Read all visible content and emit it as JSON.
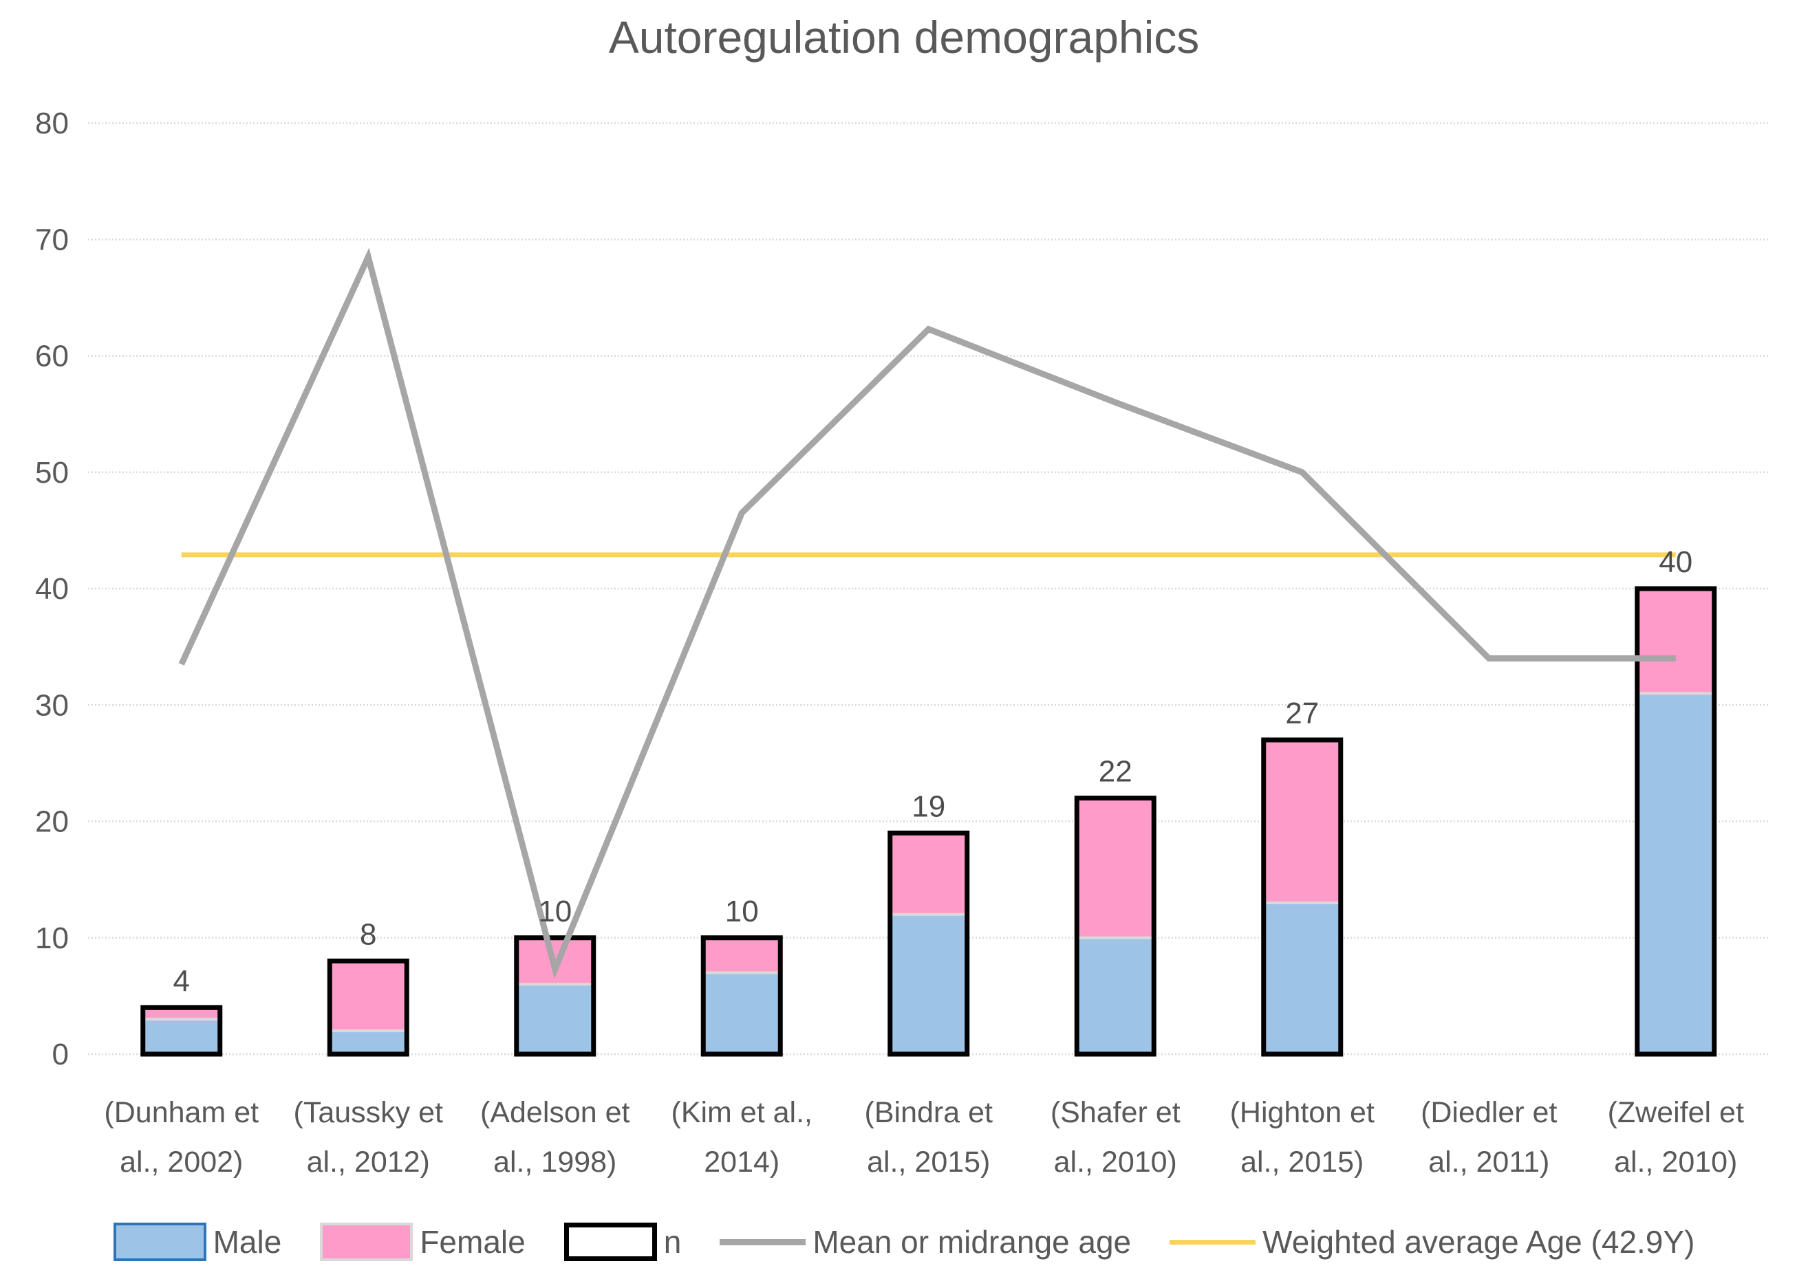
{
  "chart_data": {
    "type": "bar",
    "stacked": true,
    "title": "Autoregulation demographics",
    "xlabel": "",
    "ylabel": "",
    "ylim": [
      0,
      80
    ],
    "yticks": [
      0,
      10,
      20,
      30,
      40,
      50,
      60,
      70,
      80
    ],
    "grid": "horizontal-dotted",
    "legend_position": "bottom",
    "categories": [
      "(Dunham et al., 2002)",
      "(Taussky et al., 2012)",
      "(Adelson et al., 1998)",
      "(Kim et al., 2014)",
      "(Bindra et al., 2015)",
      "(Shafer et al., 2010)",
      "(Highton et al., 2015)",
      "(Diedler et al., 2011)",
      "(Zweifel et al., 2010)"
    ],
    "category_lines": [
      [
        "(Dunham et",
        "al., 2002)"
      ],
      [
        "(Taussky et",
        "al., 2012)"
      ],
      [
        "(Adelson et",
        "al., 1998)"
      ],
      [
        "(Kim et al.,",
        "2014)"
      ],
      [
        "(Bindra et",
        "al., 2015)"
      ],
      [
        "(Shafer et",
        "al., 2010)"
      ],
      [
        "(Highton et",
        "al., 2015)"
      ],
      [
        "(Diedler et",
        "al., 2011)"
      ],
      [
        "(Zweifel et",
        "al., 2010)"
      ]
    ],
    "series": [
      {
        "name": "Male",
        "type": "bar",
        "color": "#9DC3E6",
        "values": [
          3,
          2,
          6,
          7,
          12,
          10,
          13,
          null,
          31
        ]
      },
      {
        "name": "Female",
        "type": "bar",
        "color": "#FF9BC9",
        "values": [
          1,
          6,
          4,
          3,
          7,
          12,
          14,
          null,
          9
        ]
      },
      {
        "name": "n",
        "type": "bar-outline",
        "color": "#000000",
        "values": [
          4,
          8,
          10,
          10,
          19,
          22,
          27,
          null,
          40
        ]
      },
      {
        "name": "Mean or midrange age",
        "type": "line",
        "color": "#A6A6A6",
        "values": [
          33.5,
          68.5,
          7.3,
          46.5,
          62.3,
          56,
          50,
          34,
          34
        ]
      },
      {
        "name": "Weighted average Age (42.9Y)",
        "type": "hline",
        "color": "#F8D45C",
        "value": 42.9
      }
    ],
    "data_labels": [
      4,
      8,
      10,
      10,
      19,
      22,
      27,
      null,
      40
    ],
    "legend": [
      "Male",
      "Female",
      "n",
      "Mean or midrange age",
      "Weighted average Age (42.9Y)"
    ],
    "colors": {
      "male_fill": "#9DC3E6",
      "male_border": "#2E75B6",
      "female_fill": "#FF9BC9",
      "female_border": "#D9D9D9",
      "n_outline": "#000000",
      "mean_line": "#A6A6A6",
      "weighted_line": "#F8D45C",
      "gridline": "#D9D9D9",
      "separator": "#D9D9D9",
      "text": "#595959",
      "data_label_text": "#4D4D4D"
    }
  }
}
